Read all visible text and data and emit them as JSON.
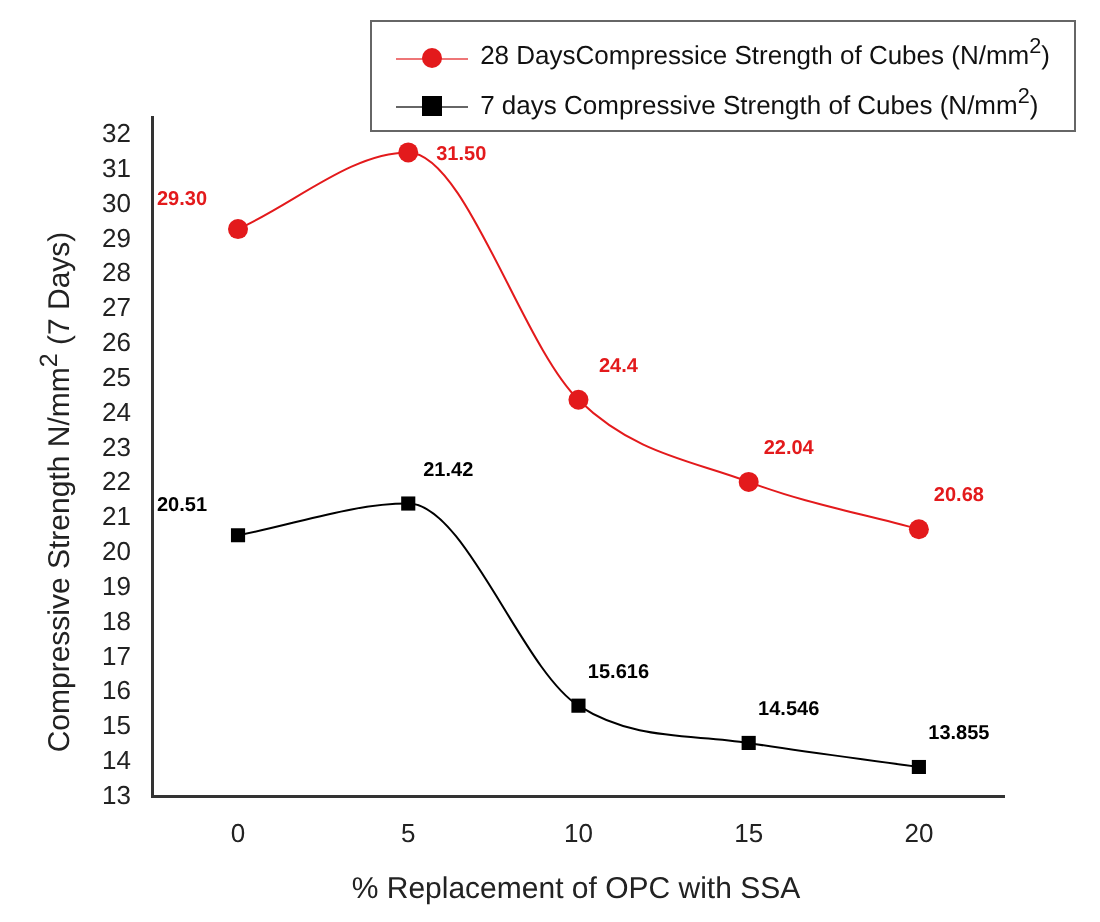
{
  "chart_data": {
    "type": "line",
    "xlabel": "% Replacement of OPC with SSA",
    "ylabel": "Compressive Strength N/mm$^{2}$ (7 Days)",
    "x": [
      0,
      5,
      10,
      15,
      20
    ],
    "xlim": [
      -2.5,
      22.5
    ],
    "xticks": [
      0,
      5,
      10,
      15,
      20
    ],
    "ylim": [
      13,
      32.5
    ],
    "yticks": [
      13,
      14,
      15,
      16,
      17,
      18,
      19,
      20,
      21,
      22,
      23,
      24,
      25,
      26,
      27,
      28,
      29,
      30,
      31,
      32
    ],
    "legend": "top right",
    "series": [
      {
        "name": "28 DaysCompressice Strength of Cubes (N/mm$^{2}$)",
        "color": "#e31a1c",
        "marker": "circle",
        "values": [
          29.3,
          31.5,
          24.4,
          22.04,
          20.68
        ],
        "value_labels": [
          "29.30",
          "31.50",
          "24.4",
          "22.04",
          "20.68"
        ]
      },
      {
        "name": "7 days Compressive Strength of Cubes (N/mm$^{2}$)",
        "color": "#000000",
        "marker": "square",
        "values": [
          20.51,
          21.42,
          15.616,
          14.546,
          13.855
        ],
        "value_labels": [
          "20.51",
          "21.42",
          "15.616",
          "14.546",
          "13.855"
        ]
      }
    ]
  }
}
